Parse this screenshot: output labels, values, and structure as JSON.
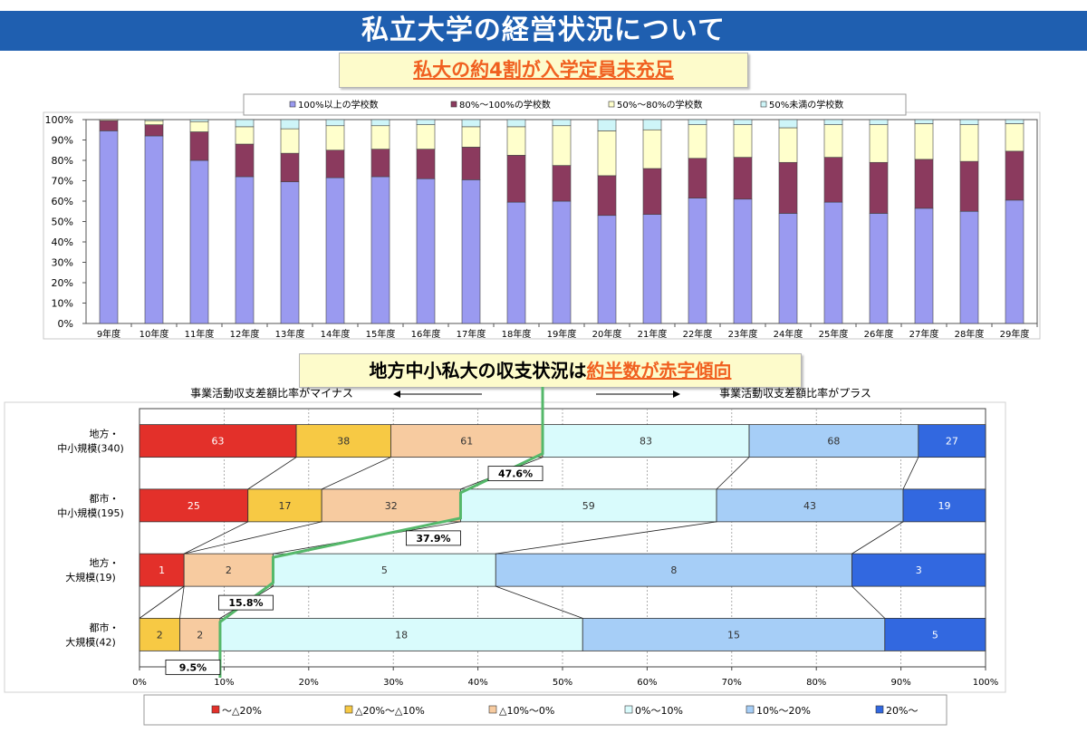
{
  "header": {
    "title": "私立大学の経営状況について",
    "subtitle1": "私大の約4割が入学定員未充足",
    "subtitle2_a": "地方中小私大の収支状況は",
    "subtitle2_b": "約半数が赤字傾向"
  },
  "colors": {
    "c1": "#9a9af0",
    "c2": "#8b3a5e",
    "c3": "#ffffcc",
    "c4": "#cef5f8",
    "d1": "#e3302a",
    "d2": "#f7c944",
    "d3": "#f7cba0",
    "d4": "#d9fbfc",
    "d5": "#a6cef7",
    "d6": "#3268e0",
    "marker": "#55b86a"
  },
  "chart_data": [
    {
      "type": "bar",
      "stacked": true,
      "categories": [
        "9年度",
        "10年度",
        "11年度",
        "12年度",
        "13年度",
        "14年度",
        "15年度",
        "16年度",
        "17年度",
        "18年度",
        "19年度",
        "20年度",
        "21年度",
        "22年度",
        "23年度",
        "24年度",
        "25年度",
        "26年度",
        "27年度",
        "28年度",
        "29年度"
      ],
      "series": [
        {
          "name": "100%以上の学校数",
          "values": [
            94.5,
            92,
            80,
            72,
            69.5,
            71.5,
            72,
            71,
            70.5,
            59.5,
            60,
            53,
            53.5,
            61.5,
            61,
            54,
            59.5,
            54,
            56.5,
            55,
            60.5
          ]
        },
        {
          "name": "80%～100%の学校数",
          "values": [
            5,
            5.5,
            14,
            16,
            14,
            13.5,
            13.5,
            14.5,
            16,
            23,
            17.5,
            19.5,
            22.5,
            19.5,
            20.5,
            25,
            22,
            25,
            24,
            24.5,
            24
          ]
        },
        {
          "name": "50%～80%の学校数",
          "values": [
            0.5,
            2,
            5,
            8.5,
            12,
            12,
            11.5,
            12,
            10,
            14,
            19.5,
            22,
            19,
            16.5,
            16,
            17,
            16,
            18.5,
            17.5,
            18,
            13.5
          ]
        },
        {
          "name": "50%未満の学校数",
          "values": [
            0,
            0.5,
            1,
            3.5,
            4.5,
            3,
            3,
            2.5,
            3.5,
            3.5,
            3,
            5.5,
            5,
            2.5,
            2.5,
            4,
            2.5,
            2.5,
            2,
            2.5,
            2
          ]
        }
      ],
      "yticks": [
        "0%",
        "10%",
        "20%",
        "30%",
        "40%",
        "50%",
        "60%",
        "70%",
        "80%",
        "90%",
        "100%"
      ],
      "ylim": [
        0,
        100
      ],
      "grid": false,
      "legend": "top"
    },
    {
      "type": "bar",
      "orientation": "horizontal",
      "stacked_percent": true,
      "axis_note_left": "事業活動収支差額比率がマイナス",
      "axis_note_right": "事業活動収支差額比率がプラス",
      "categories": [
        "地方・\n中小規模(340)",
        "都市・\n中小規模(195)",
        "地方・\n大規模(19)",
        "都市・\n大規模(42)"
      ],
      "series": [
        {
          "name": "～△20%",
          "values": [
            63,
            25,
            1,
            0
          ]
        },
        {
          "name": "△20%～△10%",
          "values": [
            38,
            17,
            0,
            2
          ]
        },
        {
          "name": "△10%～0%",
          "values": [
            61,
            32,
            2,
            2
          ]
        },
        {
          "name": "0%～10%",
          "values": [
            83,
            59,
            5,
            18
          ]
        },
        {
          "name": "10%～20%",
          "values": [
            68,
            43,
            8,
            15
          ]
        },
        {
          "name": "20%～",
          "values": [
            27,
            19,
            3,
            5
          ]
        }
      ],
      "deficit_share": [
        "47.6%",
        "37.9%",
        "15.8%",
        "9.5%"
      ],
      "xticks": [
        "0%",
        "10%",
        "20%",
        "30%",
        "40%",
        "50%",
        "60%",
        "70%",
        "80%",
        "90%",
        "100%"
      ],
      "xlim": [
        0,
        100
      ],
      "legend": "bottom"
    }
  ]
}
